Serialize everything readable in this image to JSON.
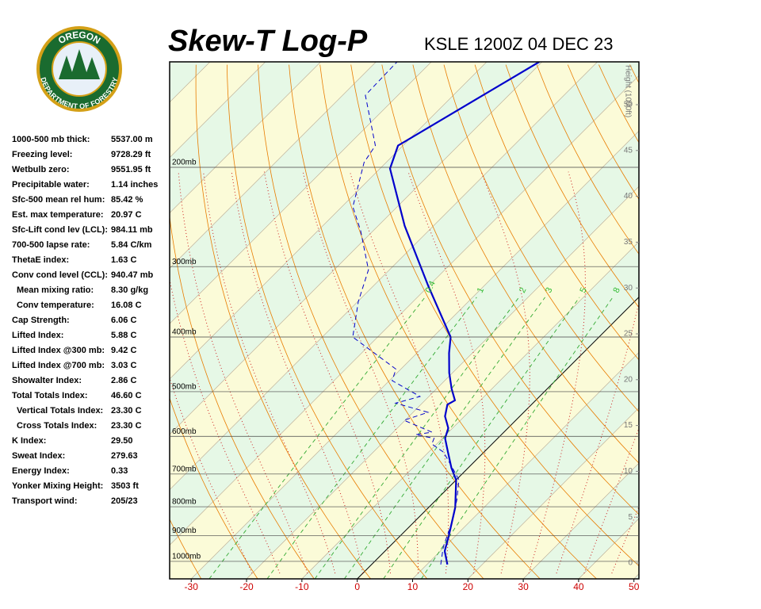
{
  "header": {
    "title": "Skew-T Log-P",
    "station": "KSLE 1200Z 04 DEC 23"
  },
  "logo": {
    "top": "OREGON",
    "bottom": "DEPARTMENT OF FORESTRY"
  },
  "indices": [
    [
      "1000-500 mb thick:",
      "5537.00 m"
    ],
    [
      "Freezing level:",
      "9728.29 ft"
    ],
    [
      "Wetbulb zero:",
      "9551.95 ft"
    ],
    [
      "Precipitable water:",
      "1.14 inches"
    ],
    [
      "Sfc-500 mean rel hum:",
      "85.42 %"
    ],
    [
      "Est. max temperature:",
      "20.97 C"
    ],
    [
      "Sfc-Lift cond lev (LCL):",
      "984.11 mb"
    ],
    [
      "700-500 lapse rate:",
      "5.84 C/km"
    ],
    [
      "ThetaE index:",
      "1.63 C"
    ],
    [
      "Conv cond level (CCL):",
      "940.47 mb"
    ],
    [
      "Mean mixing ratio:",
      "8.30 g/kg"
    ],
    [
      "Conv temperature:",
      "16.08 C"
    ],
    [
      "Cap Strength:",
      "6.06 C"
    ],
    [
      "Lifted Index:",
      "5.88 C"
    ],
    [
      "Lifted Index @300 mb:",
      "9.42 C"
    ],
    [
      "Lifted Index @700 mb:",
      "3.03 C"
    ],
    [
      "Showalter Index:",
      "2.86 C"
    ],
    [
      "Total Totals Index:",
      "46.60 C"
    ],
    [
      "Vertical Totals Index:",
      "23.30 C"
    ],
    [
      "Cross Totals Index:",
      "23.30 C"
    ],
    [
      "K Index:",
      "29.50"
    ],
    [
      "Sweat Index:",
      "279.63"
    ],
    [
      "Energy Index:",
      "0.33"
    ],
    [
      "Yonker Mixing Height:",
      "3503 ft"
    ],
    [
      "Transport wind:",
      "205/23"
    ]
  ],
  "chart_data": {
    "type": "skewt",
    "xlim": [
      -33.9,
      50.9
    ],
    "xticks": [
      -30,
      -20,
      -10,
      0,
      10,
      20,
      30,
      40,
      50
    ],
    "ylim": [
      1074,
      130
    ],
    "log_y": true,
    "yticks": [
      {
        "value": 200,
        "label": "200mb"
      },
      {
        "value": 300,
        "label": "300mb"
      },
      {
        "value": 400,
        "label": "400mb"
      },
      {
        "value": 500,
        "label": "500mb"
      },
      {
        "value": 600,
        "label": "600mb"
      },
      {
        "value": 700,
        "label": "700mb"
      },
      {
        "value": 800,
        "label": "800mb"
      },
      {
        "value": 900,
        "label": "900mb"
      },
      {
        "value": 1000,
        "label": "1000mb"
      }
    ],
    "y2lim": [
      -1.73,
      54.67
    ],
    "y2ticks": [
      0,
      5,
      10,
      15,
      20,
      25,
      30,
      35,
      40,
      45,
      50
    ],
    "y2_label": "Height (1000ft)",
    "mixing_ratios": [
      0.4,
      1,
      2,
      3,
      5,
      8
    ],
    "series": [
      {
        "color": "#0000cc",
        "dashed": false,
        "pressure": [
          1013,
          959,
          899,
          802,
          717,
          683,
          640,
          605,
          580,
          553,
          527,
          518,
          494,
          463,
          427,
          400,
          324,
          254,
          201,
          183,
          130
        ],
        "values": [
          13.7,
          10.8,
          8.7,
          4.8,
          0.0,
          -3.0,
          -6.5,
          -9.5,
          -10.8,
          -13.5,
          -15.2,
          -14.6,
          -17.3,
          -20.6,
          -24.2,
          -26.8,
          -40.2,
          -55.2,
          -68.2,
          -70.9,
          -60.5
        ]
      },
      {
        "color": "#0000cc",
        "dashed": true,
        "pressure": [
          1013,
          943,
          856,
          777,
          717,
          683,
          640,
          619,
          605,
          596,
          590,
          562,
          544,
          524,
          510,
          478,
          456,
          400,
          346,
          304,
          259,
          235,
          196,
          183,
          149,
          130
        ],
        "values": [
          12.5,
          9.8,
          7.0,
          3.7,
          0.5,
          -2.8,
          -7.3,
          -10.9,
          -11.5,
          -15.5,
          -13.0,
          -20.2,
          -17.3,
          -24.8,
          -21.6,
          -29.5,
          -30.9,
          -44.5,
          -49.9,
          -53.8,
          -62.3,
          -68.0,
          -74.0,
          -75.0,
          -85.9,
          -86.2
        ]
      }
    ]
  }
}
